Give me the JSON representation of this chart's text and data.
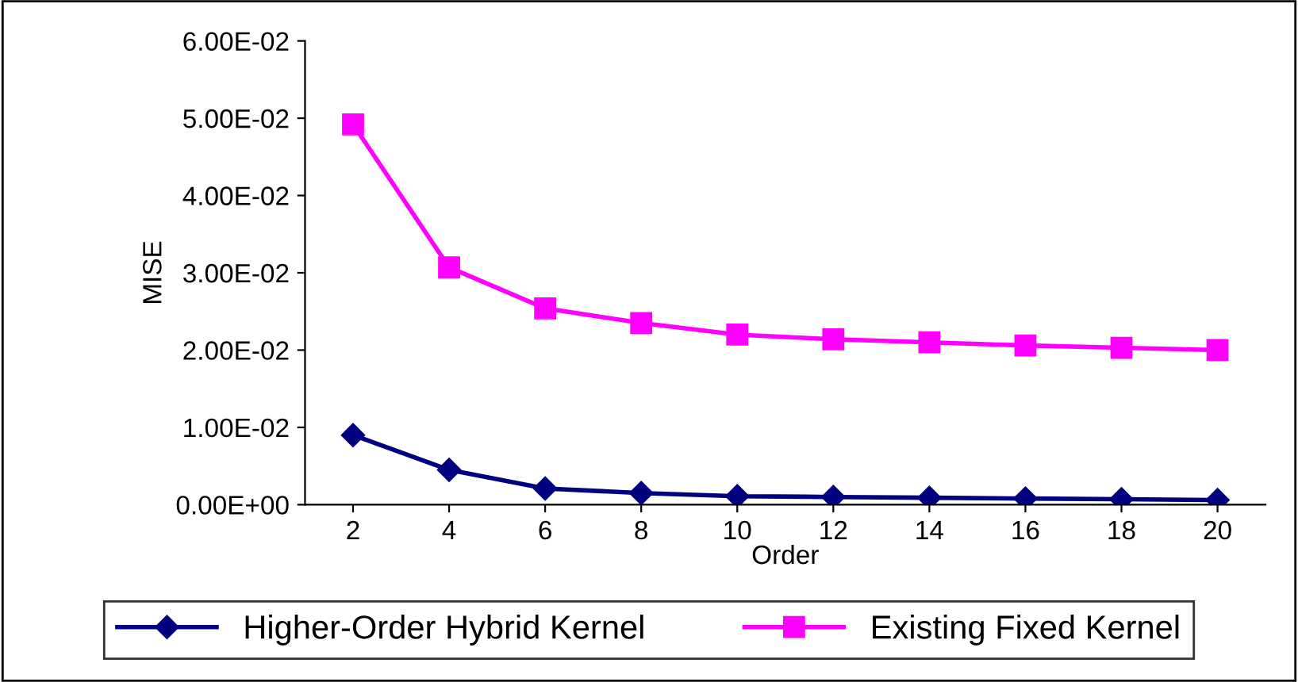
{
  "chart_data": {
    "type": "line",
    "xlabel": "Order",
    "ylabel": "MISE",
    "categories": [
      "2",
      "4",
      "6",
      "8",
      "10",
      "12",
      "14",
      "16",
      "18",
      "20"
    ],
    "series": [
      {
        "name": "Higher-Order Hybrid Kernel",
        "color": "#000080",
        "marker": "diamond",
        "values": [
          0.009,
          0.0045,
          0.0021,
          0.0015,
          0.0011,
          0.001,
          0.0009,
          0.0008,
          0.0007,
          0.0006
        ]
      },
      {
        "name": "Existing Fixed Kernel",
        "color": "#ff00ff",
        "marker": "square",
        "values": [
          0.0492,
          0.0307,
          0.0254,
          0.0235,
          0.022,
          0.0214,
          0.021,
          0.0206,
          0.0203,
          0.02
        ]
      }
    ],
    "ylim": [
      0,
      0.06
    ],
    "yticks": [
      {
        "value": 0,
        "label": "0.00E+00"
      },
      {
        "value": 0.01,
        "label": "1.00E-02"
      },
      {
        "value": 0.02,
        "label": "2.00E-02"
      },
      {
        "value": 0.03,
        "label": "3.00E-02"
      },
      {
        "value": 0.04,
        "label": "4.00E-02"
      },
      {
        "value": 0.05,
        "label": "5.00E-02"
      },
      {
        "value": 0.06,
        "label": "6.00E-02"
      }
    ],
    "grid": false,
    "legend": "bottom",
    "line_style": "solid"
  }
}
